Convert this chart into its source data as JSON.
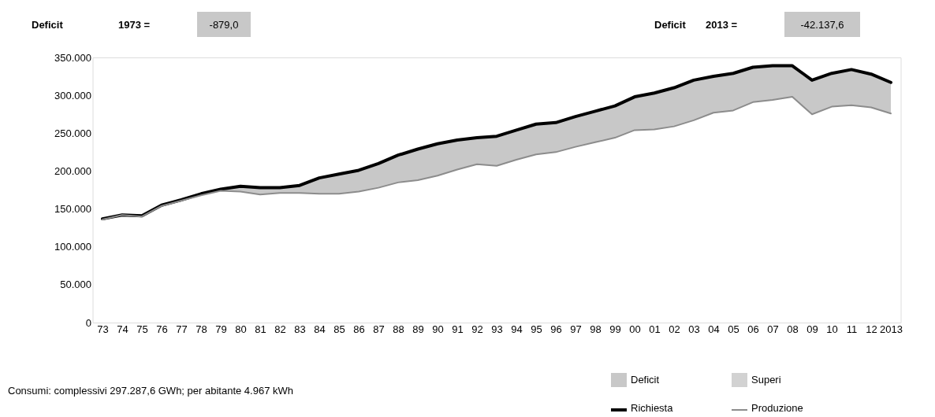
{
  "chart_data": {
    "type": "line",
    "categories": [
      "73",
      "74",
      "75",
      "76",
      "77",
      "78",
      "79",
      "80",
      "81",
      "82",
      "83",
      "84",
      "85",
      "86",
      "87",
      "88",
      "89",
      "90",
      "91",
      "92",
      "93",
      "94",
      "95",
      "96",
      "97",
      "98",
      "99",
      "00",
      "01",
      "02",
      "03",
      "04",
      "05",
      "06",
      "07",
      "08",
      "09",
      "10",
      "11",
      "12",
      "2013"
    ],
    "ylim": [
      0,
      350000
    ],
    "yticks": [
      0,
      {
        "value": 50000,
        "label": "50.000"
      },
      {
        "value": 100000,
        "label": "100.000"
      },
      {
        "value": 150000,
        "label": "150.000"
      },
      {
        "value": 200000,
        "label": "200.000"
      },
      {
        "value": 250000,
        "label": "250.000"
      },
      {
        "value": 300000,
        "label": "300.000"
      },
      {
        "value": 350000,
        "label": "350.000"
      }
    ],
    "series": [
      {
        "name": "Deficit",
        "type": "area",
        "color": "#c8c8c8",
        "values": [
          null,
          null,
          null,
          null,
          null,
          null,
          null,
          null,
          null,
          null,
          null,
          null,
          null,
          null,
          null,
          null,
          null,
          null,
          null,
          null,
          null,
          null,
          null,
          null,
          null,
          null,
          null,
          null,
          null,
          null,
          null,
          null,
          null,
          null,
          null,
          null,
          null,
          null,
          null,
          null,
          null
        ]
      },
      {
        "name": "Superi",
        "type": "area",
        "color": "#d2d2d2",
        "values": [
          null,
          null,
          null,
          null,
          null,
          null,
          null,
          null,
          null,
          null,
          null,
          null,
          null,
          null,
          null,
          null,
          null,
          null,
          null,
          null,
          null,
          null,
          null,
          null,
          null,
          null,
          null,
          null,
          null,
          null,
          null,
          null,
          null,
          null,
          null,
          null,
          null,
          null,
          null,
          null,
          null
        ]
      },
      {
        "name": "Richiesta",
        "color": "#000000",
        "values": [
          137000,
          142000,
          141000,
          155000,
          162000,
          170000,
          176000,
          180000,
          178000,
          178000,
          181000,
          191000,
          196000,
          201000,
          210000,
          221000,
          229000,
          236000,
          241000,
          244000,
          246000,
          254000,
          262000,
          264000,
          272000,
          279000,
          286000,
          298000,
          303000,
          310000,
          320000,
          325000,
          329000,
          337000,
          339000,
          339000,
          320000,
          329000,
          334000,
          328000,
          317000
        ],
        "lower": [
          136000,
          142000,
          140000,
          154000,
          161000,
          168000,
          174000,
          173000,
          169000,
          171000,
          171000,
          170000,
          170000,
          173000,
          178000,
          185000,
          188000,
          194000,
          202000,
          209000,
          207000,
          215000,
          222000,
          225000,
          232000,
          238000,
          244000,
          254000,
          255000,
          259000,
          267000,
          277000,
          280000,
          291000,
          294000,
          298000,
          275000,
          285000,
          287000,
          284000,
          276000
        ],
        "upper": [
          137000,
          142000,
          141000,
          155000,
          162000,
          170000,
          176000,
          180000,
          178000,
          178000,
          181000,
          191000,
          196000,
          201000,
          210000,
          221000,
          229000,
          236000,
          241000,
          244000,
          246000,
          254000,
          262000,
          264000,
          272000,
          279000,
          286000,
          298000,
          303000,
          310000,
          320000,
          325000,
          329000,
          337000,
          339000,
          339000,
          320000,
          329000,
          334000,
          328000,
          317000
        ]
      },
      {
        "name": "Produzione",
        "color": "#8c8c8c",
        "values": [
          136000,
          142000,
          140000,
          154000,
          161000,
          168000,
          174000,
          173000,
          169000,
          171000,
          171000,
          170000,
          170000,
          173000,
          178000,
          185000,
          188000,
          194000,
          202000,
          209000,
          207000,
          215000,
          222000,
          225000,
          232000,
          238000,
          244000,
          254000,
          255000,
          259000,
          267000,
          277000,
          280000,
          291000,
          294000,
          298000,
          275000,
          285000,
          287000,
          284000,
          276000
        ]
      }
    ],
    "annotations": [
      "Deficit",
      "1973 =",
      "-879,0",
      "Deficit",
      "2013 =",
      "-42.137,6",
      "Consumi: complessivi 297.287,6 GWh; per abitante 4.967 kWh"
    ],
    "grid": false,
    "legend": "bottom right",
    "marker": "none",
    "line_style": "solid"
  }
}
